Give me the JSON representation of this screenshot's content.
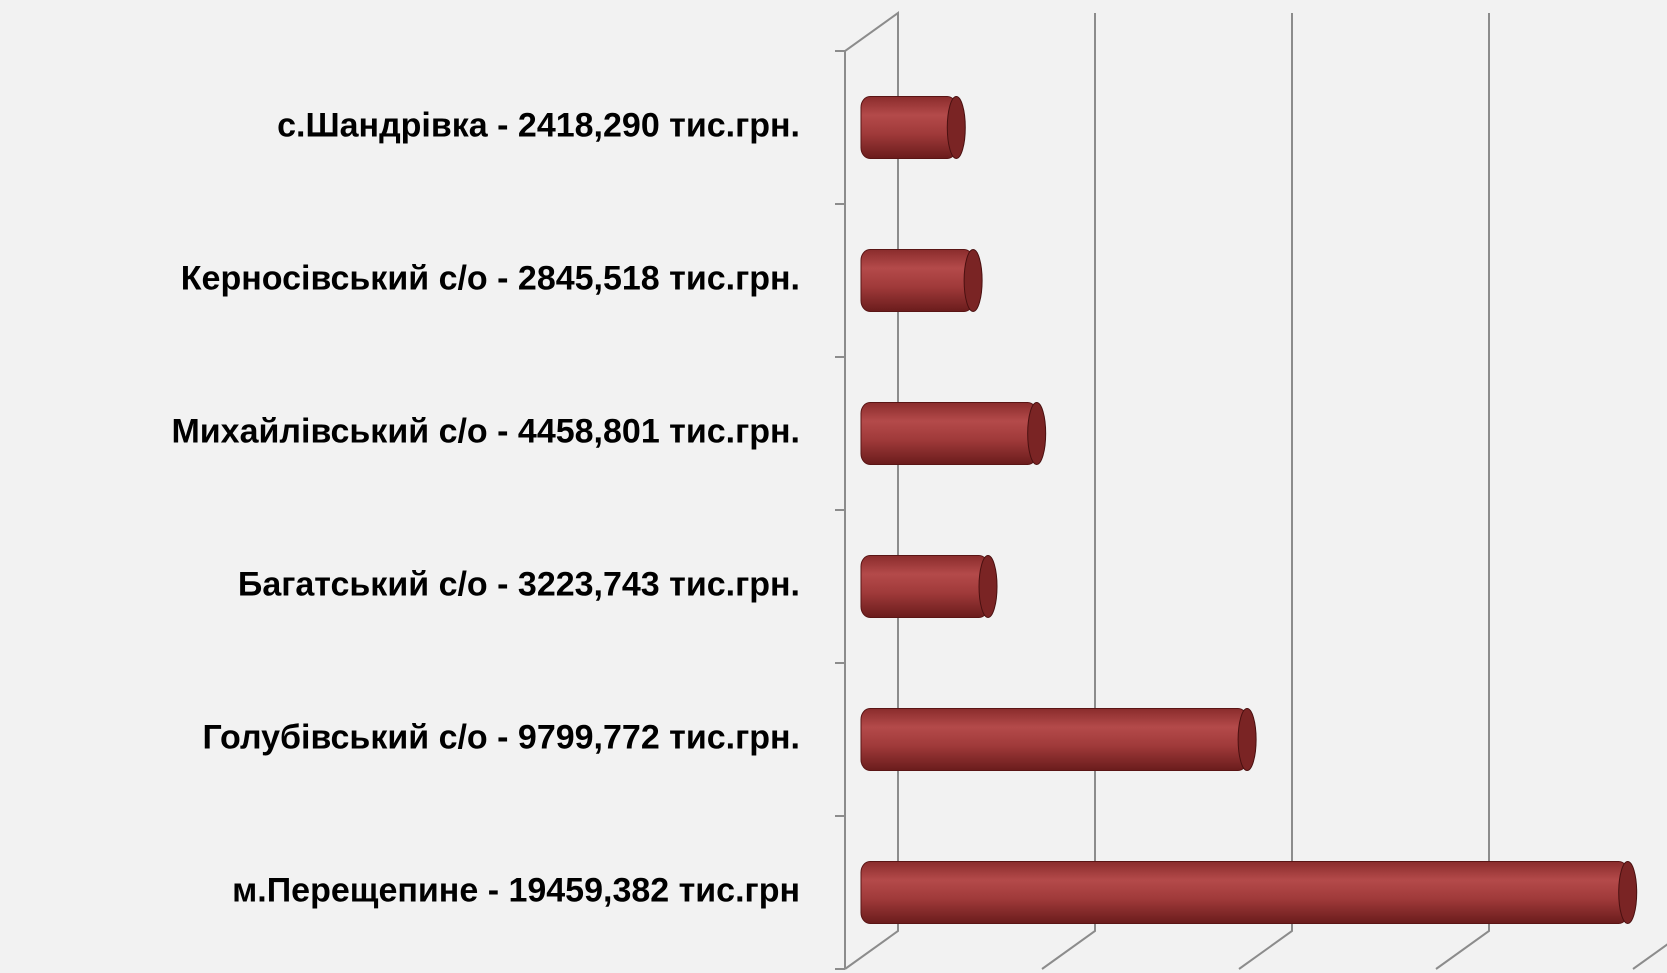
{
  "chart_data": {
    "type": "bar",
    "orientation": "horizontal",
    "style": "3d-cylinder",
    "categories": [
      "с.Шандрівка - 2418,290 тис.грн.",
      "Керносівський с/о - 2845,518 тис.грн.",
      "Михайлівський с/о - 4458,801 тис.грн.",
      "Багатський с/о - 3223,743 тис.грн.",
      "Голубівський с/о - 9799,772 тис.грн.",
      "м.Перещепине - 19459,382 тис.грн"
    ],
    "values": [
      2418.29,
      2845.518,
      4458.801,
      3223.743,
      9799.772,
      19459.382
    ],
    "color": "#a03a3a",
    "xlim": [
      0,
      20000
    ],
    "xticks": [
      0,
      5000,
      10000,
      15000,
      20000
    ],
    "grid": true
  }
}
